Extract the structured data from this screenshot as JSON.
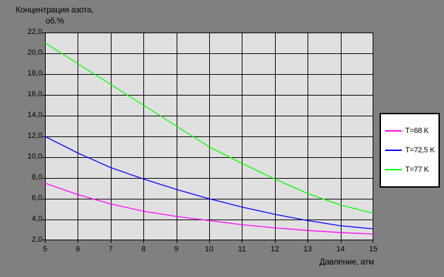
{
  "chart_data": {
    "type": "line",
    "title": "Концентрация азота, об.%",
    "title_lines": [
      "Концентрация азота,",
      "об.%"
    ],
    "xlabel": "Давление, атм",
    "ylabel": "Концентрация азота, об.%",
    "xlim": [
      5,
      15
    ],
    "ylim": [
      2,
      22
    ],
    "grid": true,
    "legend_position": "right",
    "plot_bg_color": "#E0E0E0",
    "canvas_color": "#808080",
    "gridline_color": "#000000",
    "x": [
      5,
      6,
      7,
      8,
      9,
      10,
      11,
      12,
      13,
      14,
      15
    ],
    "x_tick_labels": [
      "5",
      "6",
      "7",
      "8",
      "9",
      "10",
      "11",
      "12",
      "13",
      "14",
      "15"
    ],
    "y_tick_values": [
      22,
      20,
      18,
      16,
      14,
      12,
      10,
      8,
      6,
      4,
      2
    ],
    "y_tick_labels": [
      "22,0",
      "20,0",
      "18,0",
      "16,0",
      "14,0",
      "12,0",
      "10,0",
      "8,0",
      "6,0",
      "4,0",
      "2,0"
    ],
    "series": [
      {
        "name": "T=68 K",
        "color": "#FF00FF",
        "values": [
          7.5,
          6.4,
          5.5,
          4.8,
          4.3,
          3.9,
          3.5,
          3.2,
          2.95,
          2.75,
          2.6
        ]
      },
      {
        "name": "T=72,5 K",
        "color": "#0000FF",
        "values": [
          12.0,
          10.4,
          9.0,
          7.9,
          6.9,
          6.0,
          5.2,
          4.5,
          3.9,
          3.4,
          3.1
        ]
      },
      {
        "name": "T=77 K",
        "color": "#00FF00",
        "values": [
          21.0,
          19.0,
          17.0,
          15.0,
          13.0,
          11.0,
          9.4,
          7.9,
          6.5,
          5.4,
          4.6
        ]
      }
    ]
  }
}
